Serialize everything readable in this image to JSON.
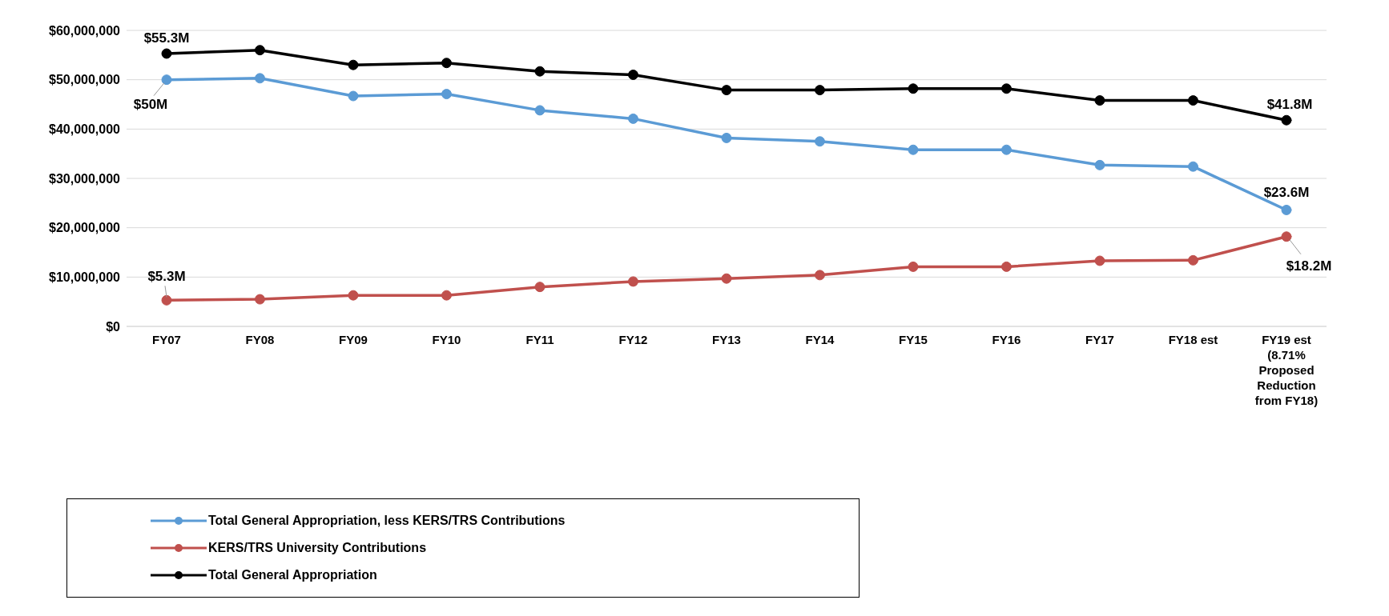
{
  "chart_data": {
    "type": "line",
    "categories": [
      "FY07",
      "FY08",
      "FY09",
      "FY10",
      "FY11",
      "FY12",
      "FY13",
      "FY14",
      "FY15",
      "FY16",
      "FY17",
      "FY18 est",
      "FY19 est (8.71% Proposed Reduction from FY18)"
    ],
    "series": [
      {
        "name": "Total General Appropriation, less KERS/TRS Contributions",
        "color": "#5b9bd5",
        "values": [
          50000000,
          50300000,
          46700000,
          47100000,
          43800000,
          42100000,
          38200000,
          37500000,
          35800000,
          35800000,
          32700000,
          32400000,
          23600000
        ],
        "value_labels": [
          "$50M",
          null,
          null,
          null,
          null,
          null,
          null,
          null,
          null,
          null,
          null,
          null,
          "$23.6M"
        ]
      },
      {
        "name": "KERS/TRS University Contributions",
        "color": "#c0504d",
        "values": [
          5300000,
          5500000,
          6300000,
          6300000,
          8000000,
          9100000,
          9700000,
          10400000,
          12100000,
          12100000,
          13300000,
          13400000,
          18200000
        ],
        "value_labels": [
          "$5.3M",
          null,
          null,
          null,
          null,
          null,
          null,
          null,
          null,
          null,
          null,
          null,
          "$18.2M"
        ]
      },
      {
        "name": "Total General Appropriation",
        "color": "#000000",
        "values": [
          55300000,
          56000000,
          53000000,
          53400000,
          51700000,
          51000000,
          47900000,
          47900000,
          48200000,
          48200000,
          45800000,
          45800000,
          41800000
        ],
        "value_labels": [
          "$55.3M",
          null,
          null,
          null,
          null,
          null,
          null,
          null,
          null,
          null,
          null,
          null,
          "$41.8M"
        ]
      }
    ],
    "ylim": [
      0,
      60000000
    ],
    "yticks": [
      {
        "value": 0,
        "label": "$0"
      },
      {
        "value": 10000000,
        "label": "$10,000,000"
      },
      {
        "value": 20000000,
        "label": "$20,000,000"
      },
      {
        "value": 30000000,
        "label": "$30,000,000"
      },
      {
        "value": 40000000,
        "label": "$40,000,000"
      },
      {
        "value": 50000000,
        "label": "$50,000,000"
      },
      {
        "value": 60000000,
        "label": "$60,000,000"
      }
    ],
    "grid": "y",
    "legend": "bottom left",
    "marker": "circle",
    "line_style": "solid"
  }
}
